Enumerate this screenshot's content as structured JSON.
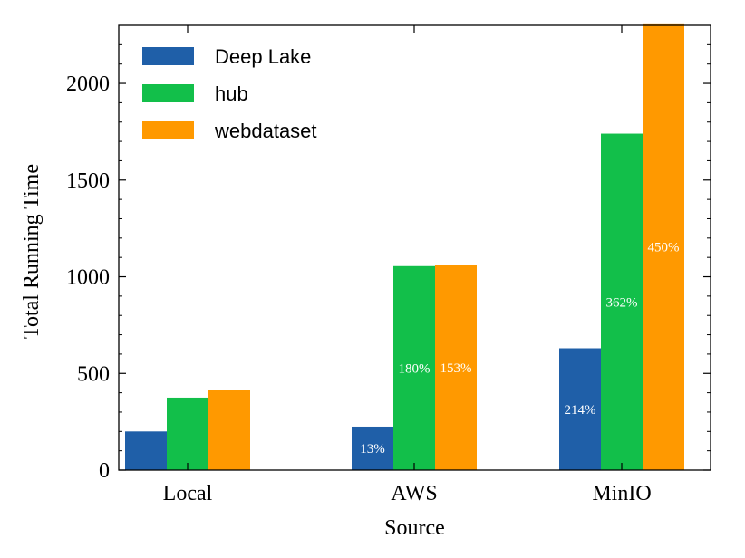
{
  "chart_data": {
    "type": "bar",
    "title": "",
    "xlabel": "Source",
    "ylabel": "Total Running Time",
    "categories": [
      "Local",
      "AWS",
      "MinIO"
    ],
    "ylim": [
      0,
      2300
    ],
    "yticks": [
      "0",
      "500",
      "1000",
      "1500",
      "2000"
    ],
    "ytick_values": [
      0,
      500,
      1000,
      1500,
      2000
    ],
    "grid": false,
    "legend_position": "top-left",
    "series": [
      {
        "name": "Deep Lake",
        "color": "#1f5fa8",
        "values": [
          200,
          225,
          630
        ],
        "labels": [
          "",
          "13%",
          "214%"
        ]
      },
      {
        "name": "hub",
        "color": "#12bf4a",
        "values": [
          375,
          1055,
          1740
        ],
        "labels": [
          "",
          "180%",
          "362%"
        ]
      },
      {
        "name": "webdataset",
        "color": "#ff9900",
        "values": [
          415,
          1060,
          2310
        ],
        "labels": [
          "",
          "153%",
          "450%"
        ]
      }
    ]
  }
}
